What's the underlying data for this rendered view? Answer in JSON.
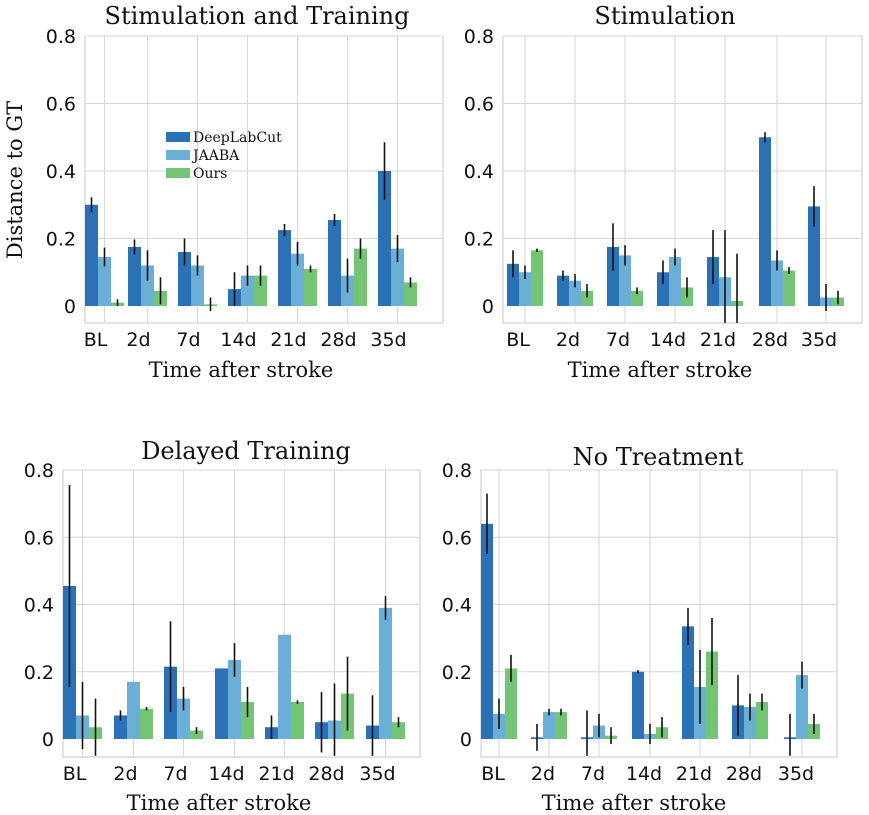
{
  "colors": {
    "DeepLabCut": "#2a72b5",
    "JAABA": "#6baed6",
    "Ours": "#74c476",
    "grid": "#d6d6d6",
    "frame": "#c4c4c4"
  },
  "chart_data": [
    {
      "type": "bar",
      "title": "Stimulation and Training",
      "xlabel": "Time after stroke",
      "ylabel": "Distance to GT",
      "categories": [
        "BL",
        "2d",
        "7d",
        "14d",
        "21d",
        "28d",
        "35d"
      ],
      "yticks": [
        "0",
        "0.2",
        "0.4",
        "0.6",
        "0.8"
      ],
      "ylim": [
        0,
        0.8
      ],
      "grid": true,
      "legend": "inside-upper-left",
      "series": [
        {
          "name": "DeepLabCut",
          "values": [
            0.3,
            0.175,
            0.16,
            0.05,
            0.225,
            0.255,
            0.4
          ],
          "errors": [
            0.022,
            0.022,
            0.04,
            0.05,
            0.018,
            0.018,
            0.085
          ]
        },
        {
          "name": "JAABA",
          "values": [
            0.145,
            0.12,
            0.12,
            0.09,
            0.155,
            0.09,
            0.17
          ],
          "errors": [
            0.028,
            0.045,
            0.03,
            0.03,
            0.035,
            0.05,
            0.04
          ]
        },
        {
          "name": "Ours",
          "values": [
            0.01,
            0.045,
            0.005,
            0.09,
            0.11,
            0.17,
            0.07
          ],
          "errors": [
            0.01,
            0.04,
            0.02,
            0.03,
            0.01,
            0.03,
            0.015
          ]
        }
      ]
    },
    {
      "type": "bar",
      "title": "Stimulation",
      "xlabel": "Time after stroke",
      "ylabel": "",
      "categories": [
        "BL",
        "2d",
        "7d",
        "14d",
        "21d",
        "28d",
        "35d"
      ],
      "yticks": [
        "0",
        "0.2",
        "0.4",
        "0.6",
        "0.8"
      ],
      "ylim": [
        0,
        0.8
      ],
      "grid": true,
      "series": [
        {
          "name": "DeepLabCut",
          "values": [
            0.125,
            0.09,
            0.175,
            0.1,
            0.145,
            0.5,
            0.295
          ],
          "errors": [
            0.04,
            0.015,
            0.07,
            0.035,
            0.08,
            0.015,
            0.06
          ]
        },
        {
          "name": "JAABA",
          "values": [
            0.1,
            0.075,
            0.15,
            0.145,
            0.085,
            0.135,
            0.025
          ],
          "errors": [
            0.02,
            0.02,
            0.03,
            0.025,
            0.14,
            0.03,
            0.04
          ]
        },
        {
          "name": "Ours",
          "values": [
            0.165,
            0.045,
            0.045,
            0.055,
            0.015,
            0.105,
            0.025
          ],
          "errors": [
            0.005,
            0.02,
            0.01,
            0.03,
            0.14,
            0.01,
            0.02
          ]
        }
      ]
    },
    {
      "type": "bar",
      "title": "Delayed Training",
      "xlabel": "Time after stroke",
      "ylabel": "",
      "categories": [
        "BL",
        "2d",
        "7d",
        "14d",
        "21d",
        "28d",
        "35d"
      ],
      "yticks": [
        "0",
        "0.2",
        "0.4",
        "0.6",
        "0.8"
      ],
      "ylim": [
        0,
        0.8
      ],
      "grid": true,
      "series": [
        {
          "name": "DeepLabCut",
          "values": [
            0.455,
            0.07,
            0.215,
            0.21,
            0.035,
            0.05,
            0.04
          ],
          "errors": [
            0.3,
            0.015,
            0.135,
            0.0,
            0.035,
            0.09,
            0.09
          ]
        },
        {
          "name": "JAABA",
          "values": [
            0.07,
            0.17,
            0.12,
            0.235,
            0.31,
            0.055,
            0.39
          ],
          "errors": [
            0.1,
            0.0,
            0.035,
            0.05,
            0.0,
            0.11,
            0.035
          ]
        },
        {
          "name": "Ours",
          "values": [
            0.035,
            0.09,
            0.025,
            0.11,
            0.11,
            0.135,
            0.05
          ],
          "errors": [
            0.085,
            0.005,
            0.01,
            0.045,
            0.005,
            0.11,
            0.015
          ]
        }
      ]
    },
    {
      "type": "bar",
      "title": "No Treatment",
      "xlabel": "Time after stroke",
      "ylabel": "",
      "categories": [
        "BL",
        "2d",
        "7d",
        "14d",
        "21d",
        "28d",
        "35d"
      ],
      "yticks": [
        "0",
        "0.2",
        "0.4",
        "0.6",
        "0.8"
      ],
      "ylim": [
        0,
        0.8
      ],
      "grid": true,
      "series": [
        {
          "name": "DeepLabCut",
          "values": [
            0.64,
            0.005,
            0.005,
            0.2,
            0.335,
            0.1,
            0.005
          ],
          "errors": [
            0.09,
            0.04,
            0.08,
            0.005,
            0.055,
            0.09,
            0.07
          ]
        },
        {
          "name": "JAABA",
          "values": [
            0.075,
            0.08,
            0.04,
            0.015,
            0.155,
            0.095,
            0.19
          ],
          "errors": [
            0.045,
            0.01,
            0.035,
            0.03,
            0.11,
            0.04,
            0.04
          ]
        },
        {
          "name": "Ours",
          "values": [
            0.21,
            0.08,
            0.01,
            0.035,
            0.26,
            0.11,
            0.045
          ],
          "errors": [
            0.04,
            0.01,
            0.025,
            0.03,
            0.1,
            0.025,
            0.03
          ]
        }
      ]
    }
  ]
}
